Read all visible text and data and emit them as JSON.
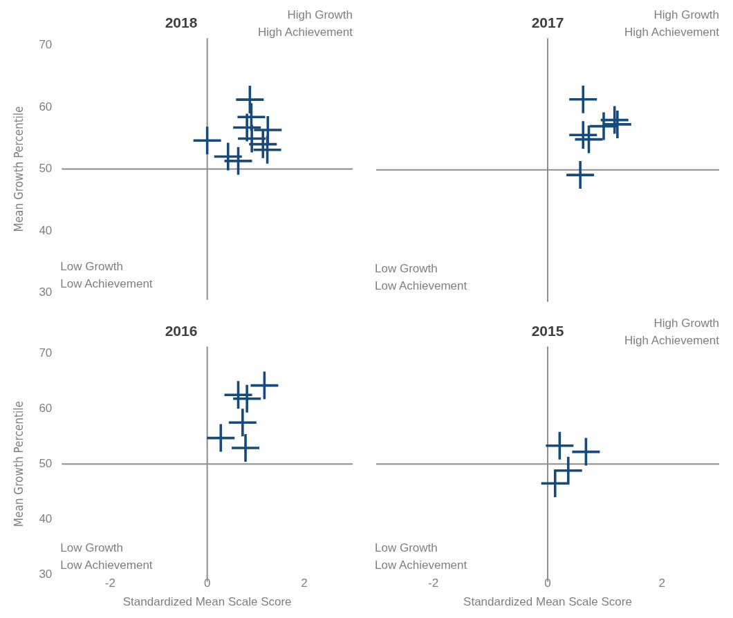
{
  "chart_data": [
    {
      "type": "scatter",
      "title": "2018",
      "ylabel": "Mean Growth Percentile",
      "x": [
        0.88,
        0.91,
        0.82,
        1.25,
        0.92,
        1.15,
        1.24,
        0.0,
        0.43,
        0.64
      ],
      "values": [
        61.2,
        58.4,
        56.7,
        56.3,
        54.9,
        54.0,
        53.1,
        54.6,
        52.0,
        51.3
      ],
      "color": "#174a7c",
      "marker": "cross",
      "xlim": [
        -3,
        3
      ],
      "xticks": [
        -2,
        0,
        2
      ],
      "ylim": [
        30,
        70
      ],
      "yticks": [
        30,
        40,
        50,
        60,
        70
      ],
      "tick_labels": "y",
      "grid": false,
      "ref_lines": [
        {
          "axis": "x",
          "value": 0,
          "color": "#8c8c8c"
        },
        {
          "axis": "y",
          "value": 50,
          "color": "#8c8c8c"
        }
      ],
      "annotations": [
        "High Growth\nHigh Achievement",
        "Low Growth\nLow Achievement"
      ]
    },
    {
      "type": "scatter",
      "title": "2017",
      "x": [
        0.62,
        1.17,
        1.22,
        0.98,
        0.62,
        0.72,
        0.57
      ],
      "values": [
        61.3,
        58.0,
        57.3,
        57.0,
        55.6,
        54.9,
        49.2
      ],
      "color": "#174a7c",
      "marker": "cross",
      "xlim": [
        -3,
        3
      ],
      "xticks": [
        -2,
        0,
        2
      ],
      "ylim": [
        30,
        70
      ],
      "yticks": [
        30,
        40,
        50,
        60,
        70
      ],
      "tick_labels": false,
      "grid": false,
      "ref_lines": [
        {
          "axis": "x",
          "value": 0,
          "color": "#8c8c8c"
        },
        {
          "axis": "y",
          "value": 50,
          "color": "#8c8c8c"
        }
      ],
      "annotations": [
        "High Growth\nHigh Achievement",
        "Low Growth\nLow Achievement"
      ]
    },
    {
      "type": "scatter",
      "title": "2016",
      "xlabel": "Standardized Mean Scale Score",
      "ylabel": "Mean Growth Percentile",
      "x": [
        1.18,
        0.64,
        0.82,
        0.73,
        0.28,
        0.79
      ],
      "values": [
        64.2,
        62.5,
        61.8,
        57.5,
        54.7,
        52.9
      ],
      "color": "#174a7c",
      "marker": "cross",
      "xlim": [
        -3,
        3
      ],
      "xticks": [
        -2,
        0,
        2
      ],
      "ylim": [
        30,
        70
      ],
      "yticks": [
        30,
        40,
        50,
        60,
        70
      ],
      "grid": false,
      "ref_lines": [
        {
          "axis": "x",
          "value": 0,
          "color": "#8c8c8c"
        },
        {
          "axis": "y",
          "value": 50,
          "color": "#8c8c8c"
        }
      ],
      "annotations": [
        "Low Growth\nLow Achievement"
      ]
    },
    {
      "type": "scatter",
      "title": "2015",
      "xlabel": "Standardized Mean Scale Score",
      "x": [
        0.21,
        0.67,
        0.36,
        0.13
      ],
      "values": [
        53.3,
        52.2,
        48.8,
        46.5
      ],
      "color": "#174a7c",
      "marker": "cross",
      "xlim": [
        -3,
        3
      ],
      "xticks": [
        -2,
        0,
        2
      ],
      "ylim": [
        30,
        70
      ],
      "yticks": [
        30,
        40,
        50,
        60,
        70
      ],
      "tick_labels": "x",
      "grid": false,
      "ref_lines": [
        {
          "axis": "x",
          "value": 0,
          "color": "#8c8c8c"
        },
        {
          "axis": "y",
          "value": 50,
          "color": "#8c8c8c"
        }
      ],
      "annotations": [
        "High Growth\nHigh Achievement",
        "Low Growth\nLow Achievement"
      ]
    }
  ]
}
